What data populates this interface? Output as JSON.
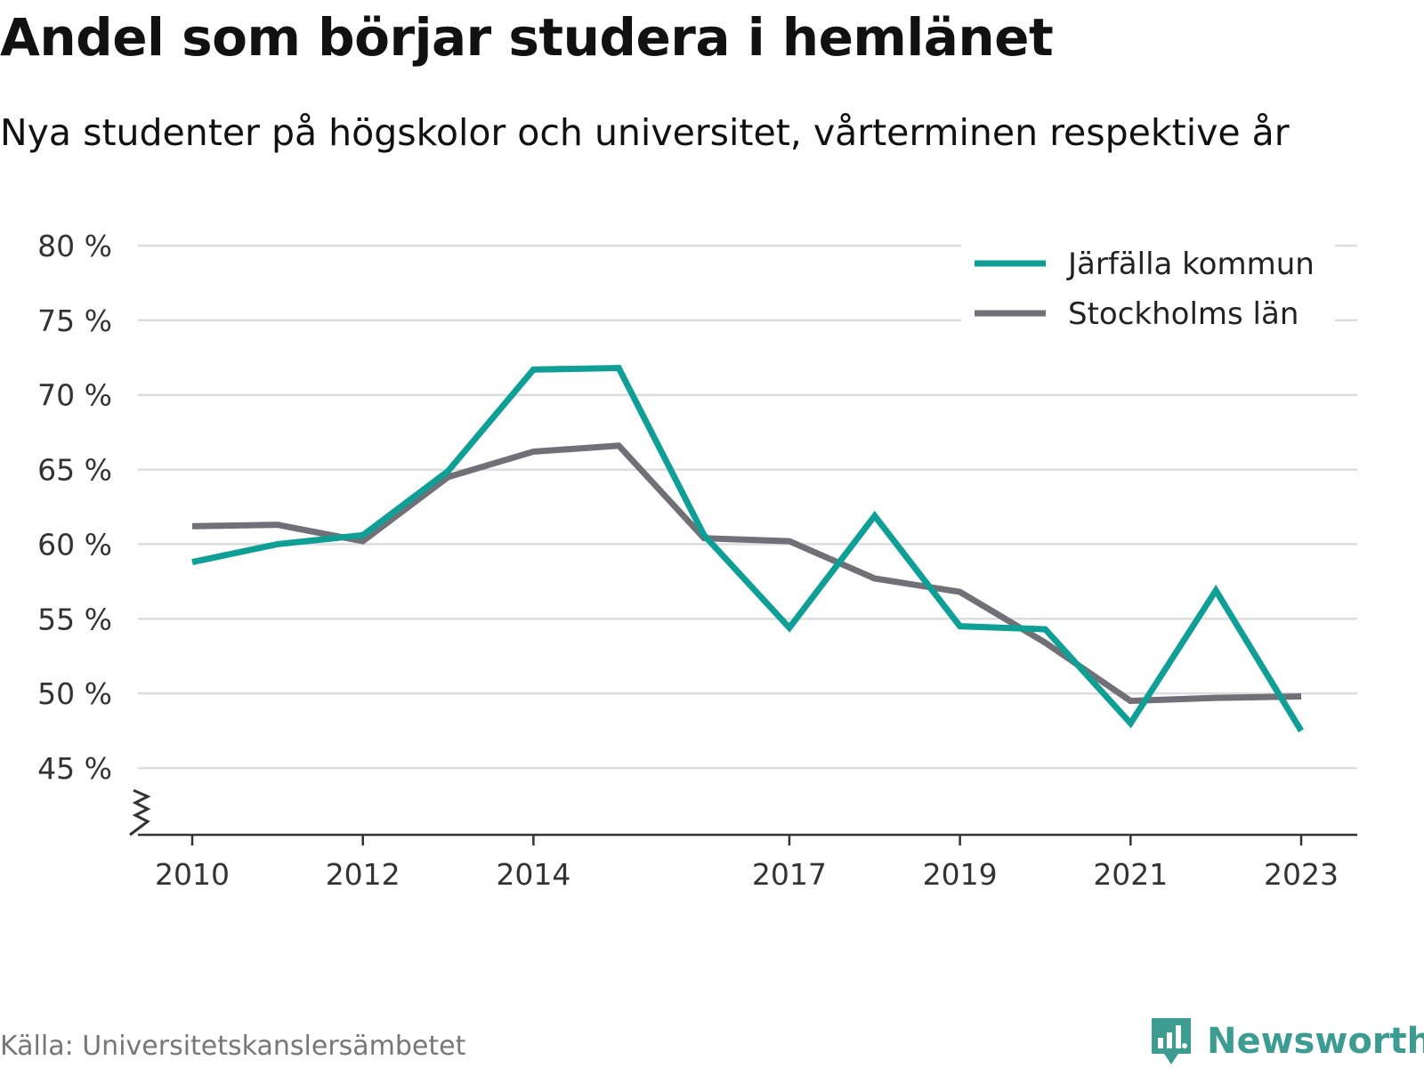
{
  "title": "Andel som börjar studera i hemlänet",
  "subtitle": "Nya studenter på högskolor och universitet, vårterminen respektive år",
  "source": "Källa: Universitetskanslersämbetet",
  "brand": {
    "name": "Newsworthy",
    "color": "#3d9c91",
    "icon": "newsworthy-logo-icon"
  },
  "chart_data": {
    "type": "line",
    "title": "Andel som börjar studera i hemlänet",
    "subtitle": "Nya studenter på högskolor och universitet, vårterminen respektive år",
    "x": [
      2010,
      2011,
      2012,
      2013,
      2014,
      2015,
      2016,
      2017,
      2018,
      2019,
      2020,
      2021,
      2022,
      2023
    ],
    "x_ticks": [
      2010,
      2012,
      2014,
      2017,
      2019,
      2021,
      2023
    ],
    "x_tick_labels": [
      "2010",
      "2012",
      "2014",
      "2017",
      "2019",
      "2021",
      "2023"
    ],
    "y_ticks": [
      45,
      50,
      55,
      60,
      65,
      70,
      75,
      80
    ],
    "y_tick_labels": [
      "45 %",
      "50 %",
      "55 %",
      "60 %",
      "65 %",
      "70 %",
      "75 %",
      "80 %"
    ],
    "ylim": [
      45,
      80
    ],
    "y_axis_break": true,
    "grid": true,
    "legend_position": "top-right",
    "series": [
      {
        "name": "Järfälla kommun",
        "color": "#0f9f96",
        "values": [
          58.8,
          60.0,
          60.6,
          64.9,
          71.7,
          71.8,
          60.6,
          54.4,
          61.9,
          54.5,
          54.3,
          48.0,
          56.9,
          47.5
        ]
      },
      {
        "name": "Stockholms län",
        "color": "#717077",
        "values": [
          61.2,
          61.3,
          60.2,
          64.5,
          66.2,
          66.6,
          60.4,
          60.2,
          57.7,
          56.8,
          53.4,
          49.5,
          49.7,
          49.8
        ]
      }
    ]
  }
}
